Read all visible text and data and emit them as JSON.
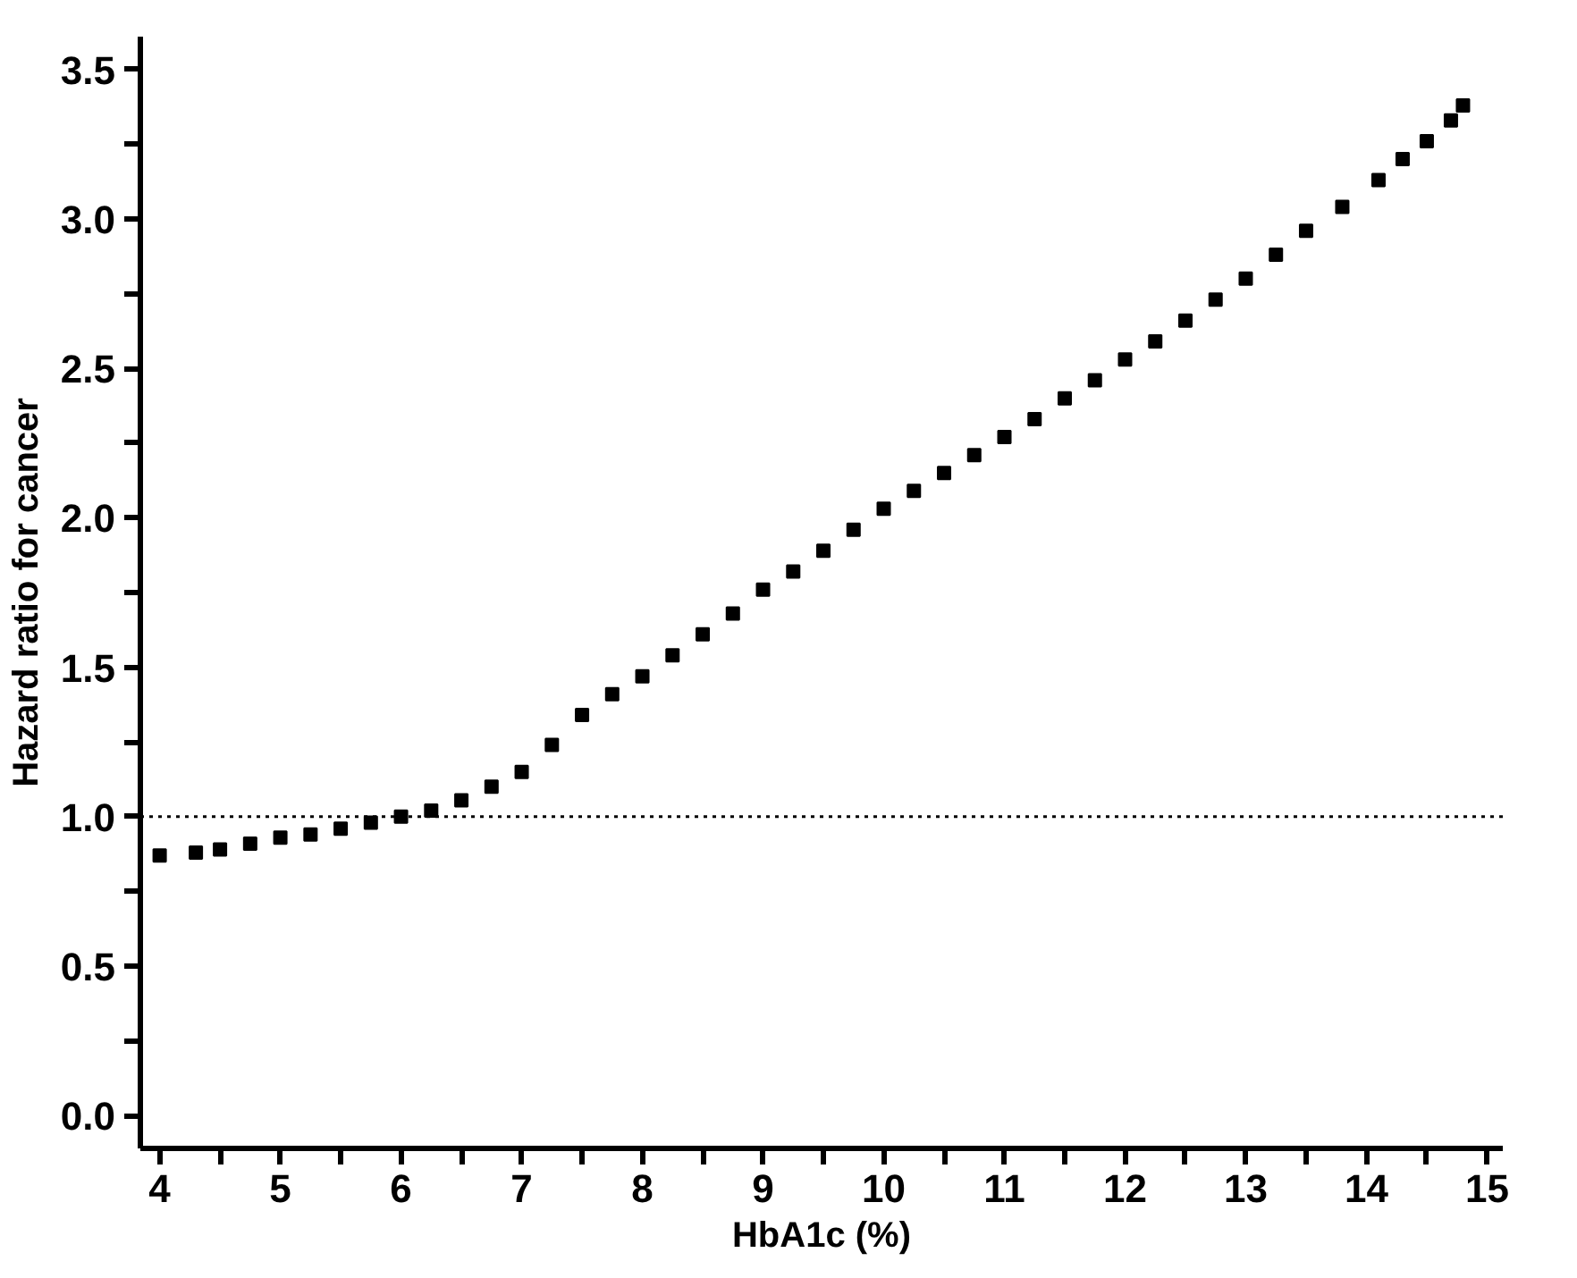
{
  "chart_data": {
    "type": "scatter",
    "xlabel": "HbA1c (%)",
    "ylabel": "Hazard ratio for cancer",
    "xlim": [
      3.84,
      15.13
    ],
    "ylim": [
      -0.11,
      3.61
    ],
    "xticks": [
      4,
      {
        "value": 4.5,
        "label": null
      },
      5,
      {
        "value": 5.5,
        "label": null
      },
      6,
      {
        "value": 6.5,
        "label": null
      },
      7,
      {
        "value": 7.5,
        "label": null
      },
      8,
      {
        "value": 8.5,
        "label": null
      },
      9,
      {
        "value": 9.5,
        "label": null
      },
      10,
      {
        "value": 10.5,
        "label": null
      },
      11,
      {
        "value": 11.5,
        "label": null
      },
      12,
      {
        "value": 12.5,
        "label": null
      },
      13,
      {
        "value": 13.5,
        "label": null
      },
      14,
      {
        "value": 14.5,
        "label": null
      },
      15
    ],
    "yticks": [
      {
        "value": 0,
        "label": "0.0"
      },
      {
        "value": 0.25,
        "label": null
      },
      0.5,
      {
        "value": 0.75,
        "label": null
      },
      {
        "value": 1,
        "label": "1.0"
      },
      {
        "value": 1.25,
        "label": null
      },
      1.5,
      {
        "value": 1.75,
        "label": null
      },
      {
        "value": 2,
        "label": "2.0"
      },
      {
        "value": 2.25,
        "label": null
      },
      2.5,
      {
        "value": 2.75,
        "label": null
      },
      {
        "value": 3,
        "label": "3.0"
      },
      {
        "value": 3.25,
        "label": null
      },
      3.5
    ],
    "grid": false,
    "marker": "square",
    "series": [
      {
        "color": "#000000",
        "x": [
          4.0,
          4.3,
          4.5,
          4.75,
          5.0,
          5.25,
          5.5,
          5.75,
          6.0,
          6.25,
          6.5,
          6.75,
          7.0,
          7.25,
          7.5,
          7.75,
          8.0,
          8.25,
          8.5,
          8.75,
          9.0,
          9.25,
          9.5,
          9.75,
          10.0,
          10.25,
          10.5,
          10.75,
          11.0,
          11.25,
          11.5,
          11.75,
          12.0,
          12.25,
          12.5,
          12.75,
          13.0,
          13.25,
          13.5,
          13.8,
          14.1,
          14.3,
          14.5,
          14.7,
          14.8
        ],
        "values": [
          0.87,
          0.88,
          0.89,
          0.91,
          0.93,
          0.94,
          0.96,
          0.98,
          1.0,
          1.02,
          1.055,
          1.1,
          1.15,
          1.24,
          1.34,
          1.41,
          1.47,
          1.54,
          1.61,
          1.68,
          1.76,
          1.82,
          1.89,
          1.96,
          2.03,
          2.09,
          2.15,
          2.21,
          2.27,
          2.33,
          2.4,
          2.46,
          2.53,
          2.59,
          2.66,
          2.73,
          2.8,
          2.88,
          2.96,
          3.04,
          3.13,
          3.2,
          3.26,
          3.33,
          3.38
        ]
      }
    ],
    "ref_lines": [
      {
        "axis": "y",
        "value": 1,
        "color": "#000000",
        "line_style": "dotted"
      }
    ]
  }
}
